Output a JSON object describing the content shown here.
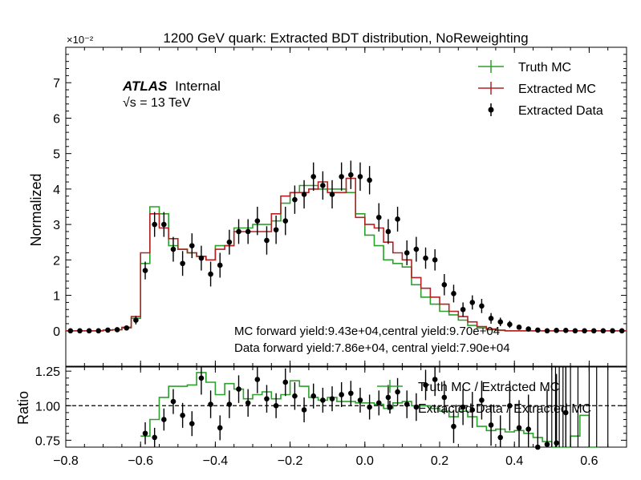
{
  "chart_data": [
    {
      "type": "line",
      "title": "1200 GeV quark: Extracted BDT distribution, NoReweighting",
      "ylabel": "Normalized",
      "y_scale_label": "×10⁻²",
      "ylim": [
        -1,
        8
      ],
      "xlim": [
        -0.8,
        0.7
      ],
      "yticks": [
        "0",
        "1",
        "2",
        "3",
        "4",
        "5",
        "6",
        "7"
      ],
      "xticks": [
        "−0.8",
        "−0.6",
        "−0.4",
        "−0.2",
        "0.0",
        "0.2",
        "0.4",
        "0.6"
      ],
      "grid": false,
      "legend_position": "top-right",
      "atlas_label": "ATLAS",
      "atlas_suffix": "Internal",
      "energy_label": "√s =  13 TeV",
      "annotations": [
        "MC forward yield:9.43e+04,central yield:9.70e+04",
        "Data forward yield:7.86e+04, central yield:7.90e+04"
      ],
      "bins": {
        "start": -0.8,
        "width": 0.025
      },
      "series": [
        {
          "name": "Truth MC",
          "style": "step",
          "color": "#2ca02c",
          "values": [
            0,
            0,
            0,
            0,
            0.02,
            0.03,
            0.08,
            0.35,
            1.9,
            3.5,
            3.3,
            2.4,
            2.3,
            2.2,
            2.1,
            2.0,
            2.4,
            2.4,
            2.9,
            2.9,
            3.0,
            3.0,
            3.1,
            3.6,
            3.9,
            4.1,
            4.1,
            4.0,
            4.0,
            4.0,
            3.9,
            3.3,
            2.7,
            2.4,
            2.0,
            1.9,
            1.8,
            1.3,
            0.95,
            0.75,
            0.55,
            0.45,
            0.3,
            0.15,
            0.08,
            0.03,
            0.01,
            0,
            0,
            0,
            0,
            0,
            0,
            0,
            0,
            0,
            0,
            0,
            0,
            0
          ]
        },
        {
          "name": "Extracted MC",
          "style": "step",
          "color": "#b22222",
          "values": [
            0,
            0,
            0,
            0,
            0.02,
            0.03,
            0.1,
            0.4,
            2.2,
            3.3,
            2.9,
            2.6,
            2.3,
            2.2,
            2.1,
            2.0,
            2.3,
            2.4,
            2.8,
            2.8,
            2.8,
            2.8,
            3.3,
            3.8,
            3.9,
            3.9,
            4.0,
            4.2,
            3.9,
            3.9,
            4.3,
            3.2,
            3.0,
            2.9,
            2.5,
            2.2,
            2.0,
            1.5,
            1.2,
            0.95,
            0.75,
            0.55,
            0.4,
            0.25,
            0.12,
            0.05,
            0.02,
            0,
            0,
            0,
            0,
            0,
            0,
            0,
            0,
            0,
            0,
            0,
            0,
            0
          ]
        },
        {
          "name": "Extracted Data",
          "style": "points",
          "color": "#000000",
          "values": [
            0,
            0,
            0,
            0,
            0.02,
            0.03,
            0.08,
            0.3,
            1.7,
            3.0,
            3.0,
            2.3,
            1.9,
            2.4,
            2.05,
            1.6,
            1.85,
            2.5,
            2.8,
            2.8,
            3.1,
            2.55,
            2.85,
            3.1,
            3.7,
            3.85,
            4.35,
            4.1,
            3.85,
            4.35,
            4.4,
            4.35,
            4.25,
            3.2,
            2.8,
            3.15,
            2.2,
            2.3,
            2.05,
            2.0,
            1.3,
            1.05,
            0.6,
            0.8,
            0.7,
            0.35,
            0.25,
            0.18,
            0.1,
            0.05,
            0.02,
            0,
            0.01,
            0.01,
            0,
            0,
            0,
            0,
            0,
            0
          ],
          "errors": [
            0,
            0,
            0,
            0,
            0.01,
            0.02,
            0.05,
            0.12,
            0.25,
            0.35,
            0.35,
            0.35,
            0.35,
            0.35,
            0.35,
            0.35,
            0.35,
            0.35,
            0.35,
            0.35,
            0.4,
            0.4,
            0.4,
            0.4,
            0.4,
            0.4,
            0.4,
            0.4,
            0.4,
            0.4,
            0.4,
            0.4,
            0.4,
            0.4,
            0.35,
            0.35,
            0.35,
            0.35,
            0.3,
            0.3,
            0.3,
            0.25,
            0.2,
            0.2,
            0.2,
            0.15,
            0.12,
            0.1,
            0.07,
            0.05,
            0.03,
            0.02,
            0.02,
            0.02,
            0.01,
            0.01,
            0.01,
            0.01,
            0.01,
            0.01
          ]
        }
      ]
    },
    {
      "type": "line",
      "ylabel": "Ratio",
      "ylim": [
        0.7,
        1.28
      ],
      "yticks": [
        "0.75",
        "1.00",
        "1.25"
      ],
      "reference_line": 1.0,
      "legend_position": "right",
      "series": [
        {
          "name": "Truth MC / Extracted MC",
          "style": "step",
          "color": "#2ca02c",
          "x_start": -0.6,
          "values": [
            0.78,
            0.9,
            1.06,
            1.14,
            1.14,
            1.15,
            1.24,
            1.17,
            1.08,
            1.16,
            1.12,
            1.05,
            1.08,
            1.1,
            1.05,
            1.08,
            1.18,
            1.14,
            1.06,
            1.04,
            1.06,
            1.03,
            1.03,
            1.02,
            1.02,
            1.01,
            0.98,
            1.02,
            1.03,
            1.0,
            1.0,
            0.98,
            0.96,
            0.92,
            0.96,
            0.92,
            0.85,
            0.82,
            0.83,
            0.81,
            0.82,
            0.8,
            0.77,
            0.74,
            0.7,
            0.68,
            0.78,
            0.93,
            0.68
          ]
        },
        {
          "name": "Extracted Data / Extracted MC",
          "style": "points",
          "color": "#000000",
          "x_start": -0.6,
          "values": [
            0.8,
            0.77,
            0.9,
            1.03,
            0.93,
            0.87,
            1.2,
            1.01,
            0.84,
            1.01,
            1.12,
            1.02,
            1.19,
            1.05,
            1.0,
            1.17,
            1.07,
            0.97,
            1.07,
            1.04,
            1.05,
            1.08,
            1.09,
            1.04,
            0.99,
            1.02,
            1.06,
            1.1,
            1.01,
            0.99,
            1.15,
            1.19,
            1.06,
            0.85,
            0.99,
            0.97,
            1.04,
            0.86,
            0.77,
            1.0,
            0.84,
            0.83,
            0.7,
            0.72,
            0.73,
            0.95
          ],
          "errors": [
            0.08,
            0.07,
            0.08,
            0.09,
            0.09,
            0.09,
            0.12,
            0.1,
            0.09,
            0.1,
            0.1,
            0.1,
            0.1,
            0.1,
            0.09,
            0.1,
            0.1,
            0.09,
            0.09,
            0.09,
            0.09,
            0.09,
            0.09,
            0.09,
            0.09,
            0.09,
            0.09,
            0.1,
            0.1,
            0.1,
            0.11,
            0.12,
            0.12,
            0.12,
            0.13,
            0.13,
            0.14,
            0.15,
            0.16,
            0.18,
            0.2,
            0.25,
            0.3,
            0.4,
            0.5,
            0.6
          ]
        }
      ]
    }
  ]
}
